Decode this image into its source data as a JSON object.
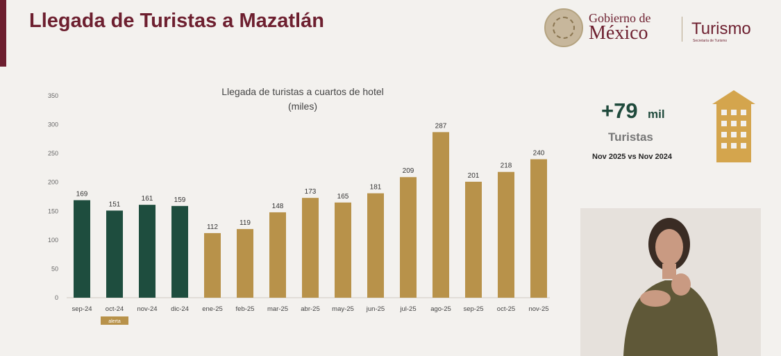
{
  "header": {
    "title": "Llegada de Turistas a Mazatlán"
  },
  "logo": {
    "gob_line1": "Gobierno de",
    "gob_line2": "México",
    "dependency": "Turismo",
    "dependency_sub": "Secretaría de Turismo"
  },
  "kpi": {
    "value": "+79",
    "unit": "mil",
    "label": "Turistas",
    "comparison": "Nov 2025 vs Nov 2024"
  },
  "chart_data": {
    "type": "bar",
    "title_line1": "Llegada de turistas a cuartos de hotel",
    "title_line2": "(miles)",
    "categories": [
      "sep-24",
      "oct-24",
      "nov-24",
      "dic-24",
      "ene-25",
      "feb-25",
      "mar-25",
      "abr-25",
      "may-25",
      "jun-25",
      "jul-25",
      "ago-25",
      "sep-25",
      "oct-25",
      "nov-25"
    ],
    "values": [
      169,
      151,
      161,
      159,
      112,
      119,
      148,
      173,
      165,
      181,
      209,
      287,
      201,
      218,
      240
    ],
    "ylim": [
      0,
      350
    ],
    "yticks": [
      0,
      50,
      100,
      150,
      200,
      250,
      300,
      350
    ],
    "colors": [
      "#1e4d3e",
      "#1e4d3e",
      "#1e4d3e",
      "#1e4d3e",
      "#b8924a",
      "#b8924a",
      "#b8924a",
      "#b8924a",
      "#b8924a",
      "#b8924a",
      "#b8924a",
      "#b8924a",
      "#b8924a",
      "#b8924a",
      "#b8924a"
    ],
    "annotation": {
      "text": "alerta",
      "category": "oct-24",
      "color": "#b8924a"
    },
    "grid": false,
    "legend": "none"
  },
  "colors": {
    "brand": "#6d1f2f",
    "kpi_green": "#1f4a3c",
    "gold": "#b8924a",
    "green_bar": "#1e4d3e"
  }
}
